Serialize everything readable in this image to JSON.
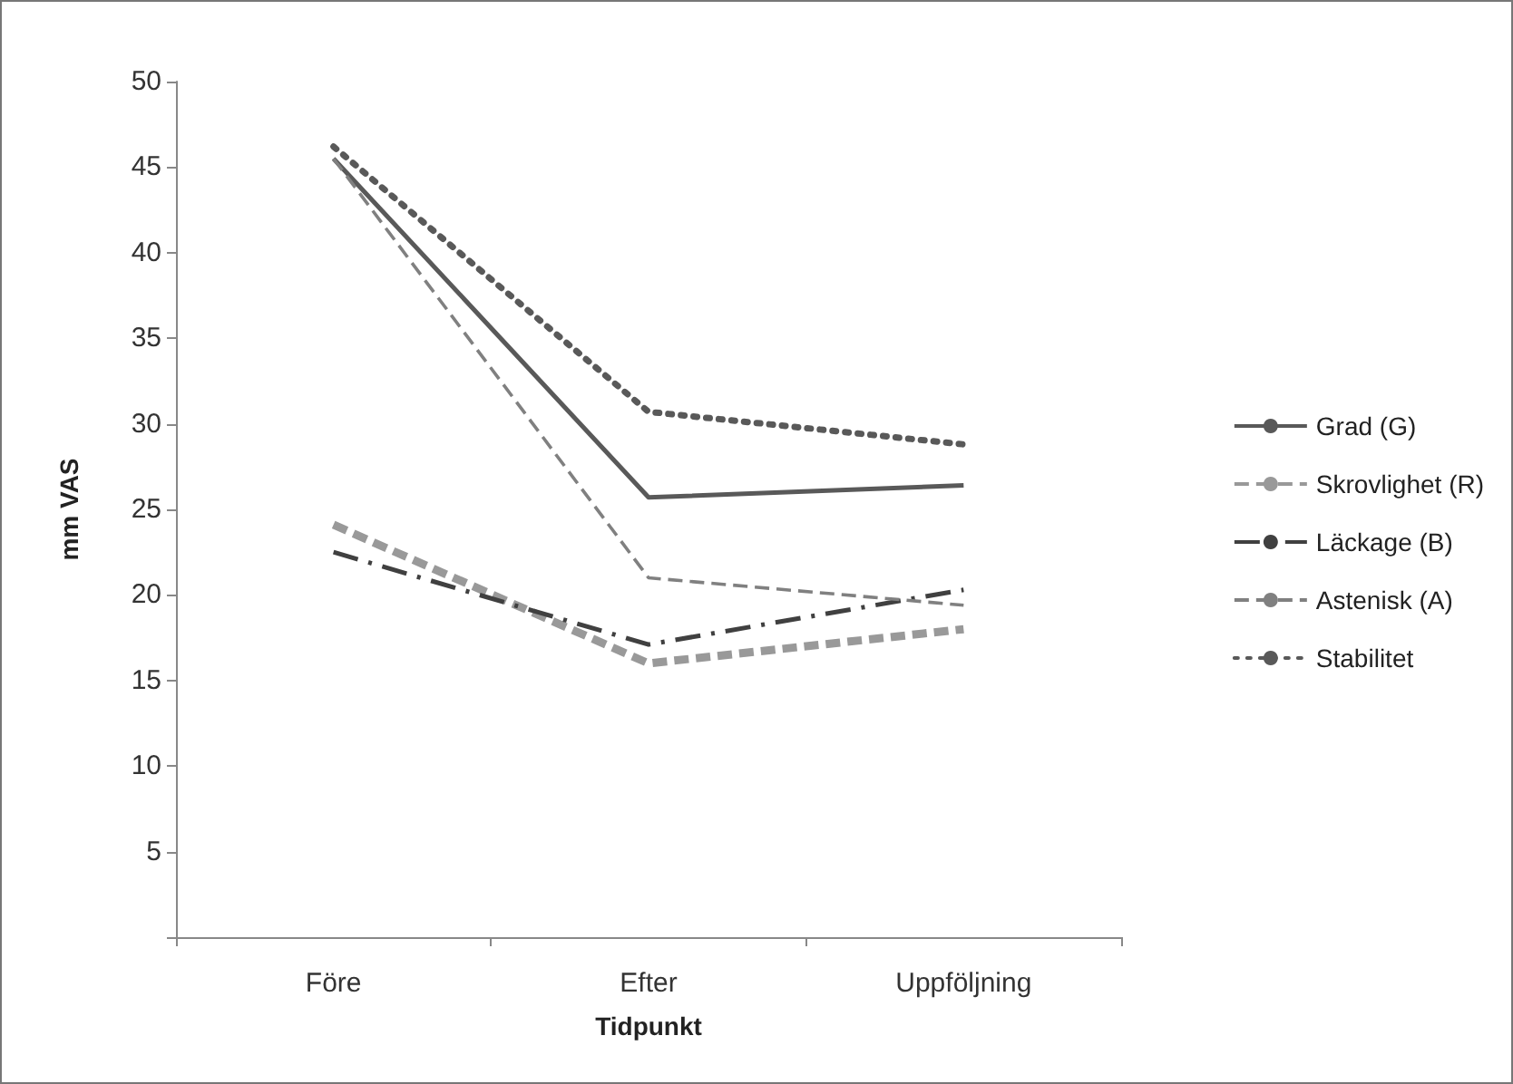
{
  "chart_data": {
    "type": "line",
    "xlabel": "Tidpunkt",
    "ylabel": "mm VAS",
    "categories": [
      "Före",
      "Efter",
      "Uppföljning"
    ],
    "series": [
      {
        "name": "Grad (G)",
        "color": "#595959",
        "line_style": "solid",
        "values": [
          45.5,
          25.7,
          26.4
        ]
      },
      {
        "name": "Skrovlighet (R)",
        "color": "#999999",
        "line_style": "dashed",
        "values": [
          24.1,
          16.0,
          18.0
        ]
      },
      {
        "name": "Läckage (B)",
        "color": "#404040",
        "line_style": "dashdot",
        "values": [
          22.5,
          17.1,
          20.3
        ]
      },
      {
        "name": "Astenisk (A)",
        "color": "#808080",
        "line_style": "dashed",
        "values": [
          45.5,
          21.0,
          19.4
        ]
      },
      {
        "name": "Stabilitet",
        "color": "#595959",
        "line_style": "dotted",
        "values": [
          46.2,
          30.7,
          28.8
        ]
      }
    ],
    "ylim": [
      0,
      50
    ],
    "yticks": [
      {
        "value": 0,
        "label": null
      },
      5,
      10,
      15,
      20,
      25,
      30,
      35,
      40,
      45,
      50
    ],
    "grid": false,
    "legend": "right",
    "marker": "none"
  }
}
